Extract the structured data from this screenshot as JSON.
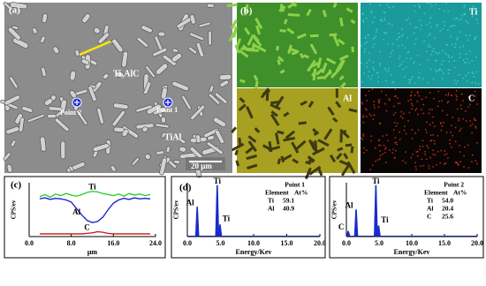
{
  "panel_a": {
    "label": "(a)",
    "phase_1": "Ti₃AlC",
    "point_2": "Point 2",
    "point_1": "Point 1",
    "phase_2": "TiAl",
    "scale": "20 μm"
  },
  "panel_b": {
    "label": "(b)",
    "maps": [
      "Ti",
      "Al",
      "C"
    ]
  },
  "chart_data": [
    {
      "type": "line",
      "panel_label": "(c)",
      "y_label": "CPS/ev",
      "x_label": "μm",
      "xlim": [
        0,
        24
      ],
      "ylim": [
        0,
        100
      ],
      "xticks": [
        {
          "value": 0,
          "label": "0.0"
        },
        {
          "value": 8,
          "label": "8.0"
        },
        {
          "value": 16,
          "label": "16.0"
        },
        {
          "value": 24,
          "label": "24.0"
        }
      ],
      "x": [
        2,
        3,
        4,
        5,
        6,
        7,
        8,
        9,
        10,
        11,
        12,
        13,
        14,
        15,
        16,
        17,
        18,
        19,
        20,
        21,
        22,
        23
      ],
      "series": [
        {
          "name": "Ti",
          "color": "#22cc22",
          "values": [
            74,
            78,
            73,
            79,
            76,
            80,
            77,
            75,
            78,
            82,
            84,
            83,
            80,
            78,
            76,
            79,
            75,
            80,
            77,
            79,
            76,
            78
          ]
        },
        {
          "name": "Al",
          "color": "#1a1ad0",
          "values": [
            70,
            72,
            69,
            71,
            70,
            68,
            64,
            52,
            40,
            30,
            26,
            28,
            36,
            50,
            62,
            68,
            71,
            69,
            72,
            70,
            71,
            70
          ]
        },
        {
          "name": "C",
          "color": "#d01010",
          "values": [
            5,
            5,
            5,
            5,
            5,
            5,
            5,
            5,
            5,
            6,
            7,
            9,
            8,
            6,
            5,
            5,
            5,
            5,
            5,
            5,
            5,
            5
          ]
        }
      ]
    },
    {
      "type": "spectrum",
      "panel_label": "(d)",
      "y_label": "CPS/ev",
      "x_label": "Energy/Kev",
      "xlim": [
        0,
        20
      ],
      "ylim": [
        0,
        100
      ],
      "xticks": [
        {
          "value": 0,
          "label": "0.0"
        },
        {
          "value": 5,
          "label": "5.0"
        },
        {
          "value": 10,
          "label": "10.0"
        },
        {
          "value": 15,
          "label": "15.0"
        },
        {
          "value": 20,
          "label": "20.0"
        }
      ],
      "x": [
        1.49,
        4.51,
        4.93
      ],
      "values": [
        55,
        95,
        22
      ],
      "peak_labels": [
        "Al",
        "Ti",
        "Ti"
      ],
      "color": "#1a2acc",
      "table": {
        "title": "Point 1",
        "header": [
          "Element",
          "At%"
        ],
        "rows": [
          [
            "Ti",
            "59.1"
          ],
          [
            "Al",
            "40.9"
          ]
        ]
      }
    },
    {
      "type": "spectrum",
      "y_label": "CPS/ev",
      "x_label": "Energy/Kev",
      "xlim": [
        0,
        20
      ],
      "ylim": [
        0,
        100
      ],
      "xticks": [
        {
          "value": 0,
          "label": "0.0"
        },
        {
          "value": 5,
          "label": "5.0"
        },
        {
          "value": 10,
          "label": "10.0"
        },
        {
          "value": 15,
          "label": "15.0"
        },
        {
          "value": 20,
          "label": "20.0"
        }
      ],
      "x": [
        0.28,
        1.49,
        4.51,
        4.93
      ],
      "values": [
        10,
        50,
        95,
        20
      ],
      "peak_labels": [
        "C",
        "Al",
        "Ti",
        "Ti"
      ],
      "color": "#1a2acc",
      "table": {
        "title": "Point 2",
        "header": [
          "Element",
          "At%"
        ],
        "rows": [
          [
            "Ti",
            "54.0"
          ],
          [
            "Al",
            "20.4"
          ],
          [
            "C",
            "25.6"
          ]
        ]
      }
    }
  ]
}
